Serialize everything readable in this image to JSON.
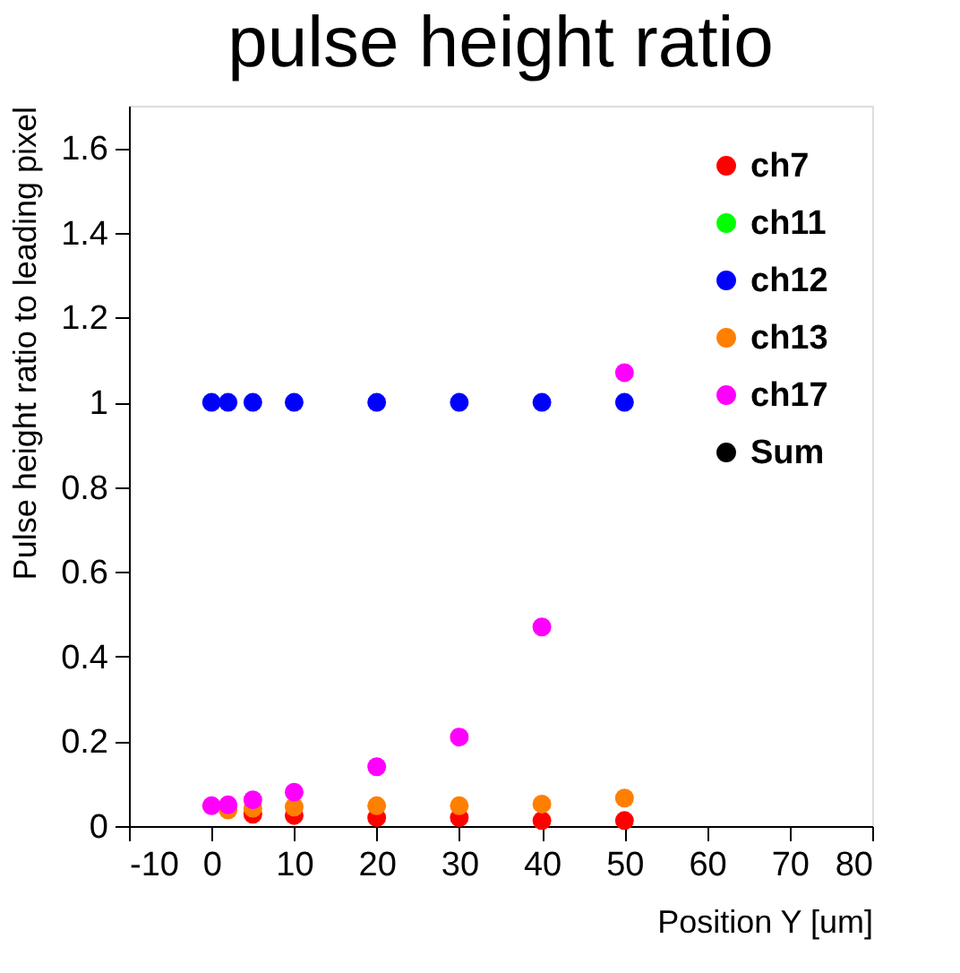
{
  "chart_data": {
    "type": "scatter",
    "title": "pulse height ratio",
    "xlabel": "Position Y [um]",
    "ylabel": "Pulse height ratio to leading pixel",
    "x": [
      0,
      2,
      5,
      10,
      20,
      30,
      40,
      50
    ],
    "series": [
      {
        "name": "ch7",
        "color": "#ff0000",
        "values": [
          null,
          null,
          0.028,
          0.025,
          0.02,
          0.02,
          0.013,
          0.013
        ]
      },
      {
        "name": "ch11",
        "color": "#00ff00",
        "values": [
          null,
          null,
          null,
          null,
          null,
          null,
          null,
          null
        ]
      },
      {
        "name": "ch12",
        "color": "#0000ff",
        "values": [
          1.0,
          1.0,
          1.0,
          1.0,
          1.0,
          1.0,
          1.0,
          1.0
        ]
      },
      {
        "name": "ch13",
        "color": "#ff7f00",
        "values": [
          null,
          0.038,
          0.042,
          0.045,
          0.048,
          0.048,
          0.052,
          0.066
        ]
      },
      {
        "name": "ch17",
        "color": "#ff00ff",
        "values": [
          0.048,
          0.05,
          0.062,
          0.08,
          0.14,
          0.21,
          0.47,
          1.07
        ]
      },
      {
        "name": "Sum",
        "color": "#000000",
        "values": [
          null,
          null,
          null,
          null,
          null,
          null,
          null,
          null
        ]
      }
    ],
    "xlim": [
      -10,
      80
    ],
    "xticks": [
      -10,
      0,
      10,
      20,
      30,
      40,
      50,
      60,
      70,
      80
    ],
    "ylim": [
      0,
      1.7
    ],
    "yticks": [
      0,
      0.2,
      0.4,
      0.6,
      0.8,
      1,
      1.2,
      1.4,
      1.6
    ],
    "grid": false,
    "legend": "top right",
    "marker": "circle"
  }
}
